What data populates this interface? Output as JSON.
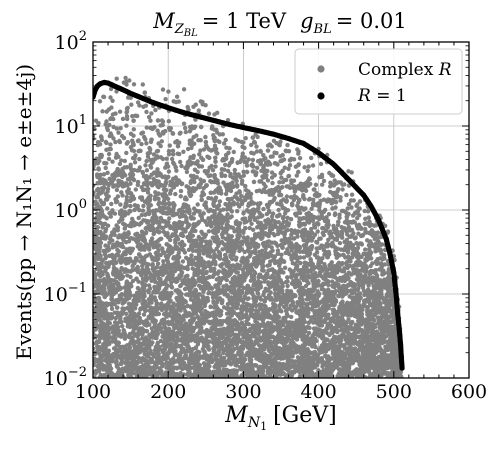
{
  "chart_data": {
    "type": "scatter",
    "title": "M_{Z_{BL}} = 1 TeV   g_{BL} = 0.01",
    "title_parts": {
      "lhs_symbol": "M",
      "lhs_sub": "Z",
      "lhs_subsub": "BL",
      "lhs_value": "= 1 TeV",
      "rhs_symbol": "g",
      "rhs_sub": "BL",
      "rhs_value": "= 0.01"
    },
    "xlabel": "M_{N_1} [GeV]",
    "xlabel_parts": {
      "symbol": "M",
      "sub": "N",
      "subsub": "1",
      "unit": "[GeV]"
    },
    "ylabel": "Events(pp → N_1 N_1 → e^± e^± 4j)",
    "ylabel_text": "Events(pp → N₁N₁ → e±e±4j)",
    "xlim": [
      100,
      600
    ],
    "ylim": [
      0.01,
      100
    ],
    "yscale": "log",
    "grid": true,
    "legend_position": "top-right",
    "xtick_labels": [
      "100",
      "200",
      "300",
      "400",
      "500",
      "600"
    ],
    "xtick_values": [
      100,
      200,
      300,
      400,
      500,
      600
    ],
    "ytick_values": [
      0.01,
      0.1,
      1,
      10,
      100
    ],
    "ytick_labels": [
      {
        "base": "10",
        "exp": "−2"
      },
      {
        "base": "10",
        "exp": "−1"
      },
      {
        "base": "10",
        "exp": "0"
      },
      {
        "base": "10",
        "exp": "1"
      },
      {
        "base": "10",
        "exp": "2"
      }
    ],
    "series": [
      {
        "name": "Complex R",
        "color": "#808080",
        "kind": "scatter-cloud",
        "upper_envelope": {
          "x": [
            100,
            110,
            120,
            135,
            150,
            165,
            180,
            200,
            220,
            240,
            260,
            280,
            300,
            320,
            340,
            360,
            380,
            400,
            420,
            440,
            460,
            475,
            490,
            500,
            505,
            510
          ],
          "y": [
            20,
            28,
            38,
            45,
            50,
            45,
            40,
            33,
            28,
            24,
            21,
            17,
            13,
            11,
            9,
            8,
            7,
            6,
            4.5,
            3.2,
            2,
            1.3,
            0.8,
            0.35,
            0.15,
            0.03
          ]
        },
        "lower_bound": 0.01,
        "n_points": 9000
      },
      {
        "name": "R = 1",
        "color": "#000000",
        "kind": "curve",
        "x": [
          100,
          103,
          106,
          110,
          115,
          120,
          125,
          130,
          140,
          150,
          160,
          180,
          200,
          220,
          240,
          260,
          280,
          300,
          320,
          340,
          360,
          380,
          400,
          420,
          440,
          460,
          470,
          480,
          490,
          495,
          500,
          503,
          505,
          507,
          509,
          510,
          511
        ],
        "y": [
          22,
          27,
          30,
          32,
          33,
          32.5,
          31,
          29.5,
          27,
          24.5,
          22.5,
          19,
          16.5,
          14.5,
          13,
          11.7,
          10.5,
          9.6,
          8.8,
          8.0,
          7.1,
          6.2,
          4.8,
          3.5,
          2.3,
          1.5,
          1.1,
          0.75,
          0.45,
          0.3,
          0.18,
          0.1,
          0.06,
          0.04,
          0.025,
          0.018,
          0.013
        ]
      }
    ],
    "legend": {
      "complex_label": "Complex R",
      "r1_label": "R = 1"
    }
  }
}
